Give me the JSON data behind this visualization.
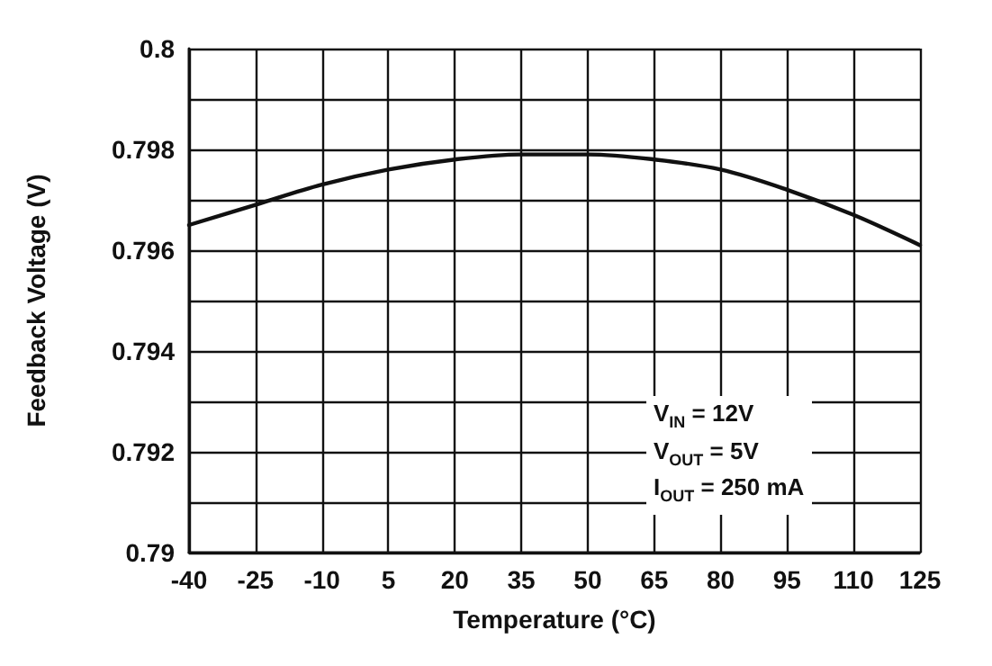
{
  "chart_data": {
    "type": "line",
    "xlabel": "Temperature (°C)",
    "ylabel": "Feedback Voltage (V)",
    "x": [
      -40,
      -25,
      -10,
      5,
      20,
      35,
      50,
      65,
      80,
      95,
      110,
      125
    ],
    "series": [
      {
        "color": "#111111",
        "values": [
          0.7965,
          0.7969,
          0.7973,
          0.7976,
          0.7978,
          0.7979,
          0.7979,
          0.7978,
          0.7976,
          0.7972,
          0.7967,
          0.7961
        ]
      }
    ],
    "xlim": [
      -40,
      125
    ],
    "xticks": [
      -40,
      -25,
      -10,
      5,
      20,
      35,
      50,
      65,
      80,
      95,
      110,
      125
    ],
    "ylim": [
      0.79,
      0.8
    ],
    "yticks": [
      0.79,
      {
        "value": 0.791,
        "label": null
      },
      0.792,
      {
        "value": 0.793,
        "label": null
      },
      0.794,
      {
        "value": 0.795,
        "label": null
      },
      0.796,
      {
        "value": 0.797,
        "label": null
      },
      0.798,
      {
        "value": 0.799,
        "label": null
      },
      0.8
    ],
    "annotations": [
      "V$_{IN}$ = 12V",
      "V$_{OUT}$ = 5V",
      "I$_{OUT}$ = 250 mA"
    ],
    "grid": true,
    "marker": "none",
    "line_style": "solid"
  }
}
